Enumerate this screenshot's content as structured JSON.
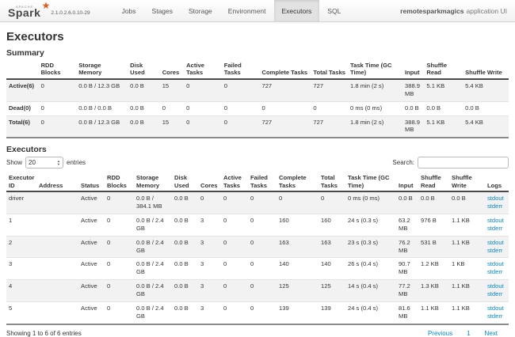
{
  "navbar": {
    "logo_apache": "APACHE",
    "logo_text": "Spark",
    "version": "2.1.0.2.6.0.10-29",
    "items": [
      {
        "label": "Jobs",
        "active": false
      },
      {
        "label": "Stages",
        "active": false
      },
      {
        "label": "Storage",
        "active": false
      },
      {
        "label": "Environment",
        "active": false
      },
      {
        "label": "Executors",
        "active": true
      },
      {
        "label": "SQL",
        "active": false
      }
    ],
    "app_name": "remotesparkmagics",
    "app_suffix": "application UI"
  },
  "page": {
    "title": "Executors"
  },
  "summary": {
    "heading": "Summary",
    "headers": [
      "",
      "RDD Blocks",
      "Storage Memory",
      "Disk Used",
      "Cores",
      "Active Tasks",
      "Failed Tasks",
      "Complete Tasks",
      "Total Tasks",
      "Task Time (GC Time)",
      "Input",
      "Shuffle Read",
      "Shuffle Write"
    ],
    "rows": [
      [
        "Active(6)",
        "0",
        "0.0 B / 12.3 GB",
        "0.0 B",
        "15",
        "0",
        "0",
        "727",
        "727",
        "1.8 min (2 s)",
        "388.9 MB",
        "5.1 KB",
        "5.4 KB"
      ],
      [
        "Dead(0)",
        "0",
        "0.0 B / 0.0 B",
        "0.0 B",
        "0",
        "0",
        "0",
        "0",
        "0",
        "0 ms (0 ms)",
        "0.0 B",
        "0.0 B",
        "0.0 B"
      ],
      [
        "Total(6)",
        "0",
        "0.0 B / 12.3 GB",
        "0.0 B",
        "15",
        "0",
        "0",
        "727",
        "727",
        "1.8 min (2 s)",
        "388.9 MB",
        "5.1 KB",
        "5.4 KB"
      ]
    ]
  },
  "executors": {
    "heading": "Executors",
    "show_label": "Show",
    "show_value": "20",
    "entries_label": "entries",
    "search_label": "Search:",
    "search_value": "",
    "headers": [
      "Executor ID",
      "Address",
      "Status",
      "RDD Blocks",
      "Storage Memory",
      "Disk Used",
      "Cores",
      "Active Tasks",
      "Failed Tasks",
      "Complete Tasks",
      "Total Tasks",
      "Task Time (GC Time)",
      "Input",
      "Shuffle Read",
      "Shuffle Write",
      "Logs"
    ],
    "log_links": [
      "stdout",
      "stderr"
    ],
    "rows": [
      {
        "cells": [
          "driver",
          "",
          "Active",
          "0",
          "0.0 B / 384.1 MB",
          "0.0 B",
          "0",
          "0",
          "0",
          "0",
          "0",
          "0 ms (0 ms)",
          "0.0 B",
          "0.0 B",
          "0.0 B"
        ]
      },
      {
        "cells": [
          "1",
          "",
          "Active",
          "0",
          "0.0 B / 2.4 GB",
          "0.0 B",
          "3",
          "0",
          "0",
          "160",
          "160",
          "24 s (0.3 s)",
          "63.2 MB",
          "976 B",
          "1.1 KB"
        ]
      },
      {
        "cells": [
          "2",
          "",
          "Active",
          "0",
          "0.0 B / 2.4 GB",
          "0.0 B",
          "3",
          "0",
          "0",
          "163",
          "163",
          "23 s (0.3 s)",
          "76.2 MB",
          "531 B",
          "1.1 KB"
        ]
      },
      {
        "cells": [
          "3",
          "",
          "Active",
          "0",
          "0.0 B / 2.4 GB",
          "0.0 B",
          "3",
          "0",
          "0",
          "140",
          "140",
          "26 s (0.4 s)",
          "90.7 MB",
          "1.2 KB",
          "1 KB"
        ]
      },
      {
        "cells": [
          "4",
          "",
          "Active",
          "0",
          "0.0 B / 2.4 GB",
          "0.0 B",
          "3",
          "0",
          "0",
          "125",
          "125",
          "14 s (0.4 s)",
          "77.2 MB",
          "1.3 KB",
          "1.1 KB"
        ]
      },
      {
        "cells": [
          "5",
          "",
          "Active",
          "0",
          "0.0 B / 2.4 GB",
          "0.0 B",
          "3",
          "0",
          "0",
          "139",
          "139",
          "24 s (0.4 s)",
          "81.6 MB",
          "1.1 KB",
          "1.1 KB"
        ]
      }
    ],
    "footer_text": "Showing 1 to 6 of 6 entries",
    "pagination": [
      "Previous",
      "1",
      "Next"
    ]
  },
  "colors": {
    "link": "#0088cc",
    "brand_orange": "#e25a1c",
    "stripe": "#f2f2f2"
  }
}
